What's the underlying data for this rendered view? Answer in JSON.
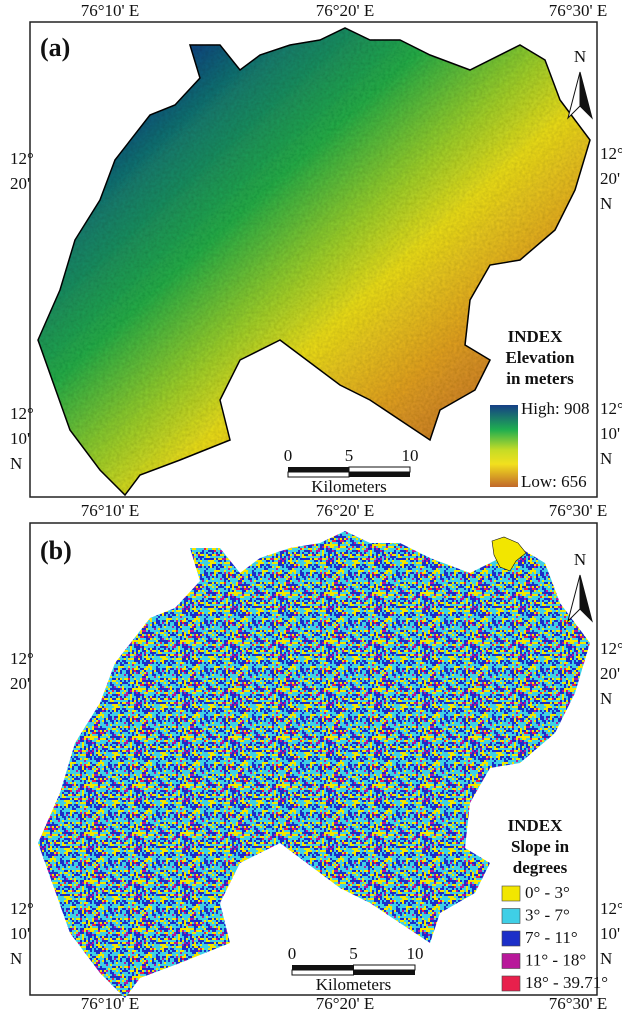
{
  "panels": [
    {
      "label": "(a)",
      "top_labels": [
        "76°10' E",
        "76°20' E",
        "76°30' E"
      ],
      "bottom_labels": [
        "76°10' E",
        "76°20' E",
        "76°30' E"
      ],
      "left_labels": [
        [
          "12°",
          "20'"
        ],
        [
          "12°",
          "10'",
          "N"
        ]
      ],
      "right_labels": [
        [
          "12°",
          "20'",
          "N"
        ],
        [
          "12°",
          "10'",
          "N"
        ]
      ],
      "north": "N",
      "scale": {
        "ticks": [
          "0",
          "5",
          "10"
        ],
        "unit": "Kilometers"
      },
      "legend": {
        "title": "INDEX",
        "subtitle": [
          "Elevation",
          "in meters"
        ],
        "high": "High: 908",
        "low": "Low: 656"
      }
    },
    {
      "label": "(b)",
      "bottom_labels": [
        "76°10' E",
        "76°20' E",
        "76°30' E"
      ],
      "left_labels": [
        [
          "12°",
          "20'"
        ],
        [
          "12°",
          "10'",
          "N"
        ]
      ],
      "right_labels": [
        [
          "12°",
          "20'",
          "N"
        ],
        [
          "12°",
          "10'",
          "N"
        ]
      ],
      "north": "N",
      "scale": {
        "ticks": [
          "0",
          "5",
          "10"
        ],
        "unit": "Kilometers"
      },
      "legend": {
        "title": "INDEX",
        "subtitle": [
          "Slope in",
          "degrees"
        ],
        "classes": [
          {
            "label": "0° - 3°",
            "color": "#f2e600"
          },
          {
            "label": "3° - 7°",
            "color": "#3fcfe6"
          },
          {
            "label": "7° - 11°",
            "color": "#1c2fc8"
          },
          {
            "label": "11° - 18°",
            "color": "#b8189a"
          },
          {
            "label": "18° - 39.71°",
            "color": "#e8204c"
          }
        ]
      }
    }
  ]
}
